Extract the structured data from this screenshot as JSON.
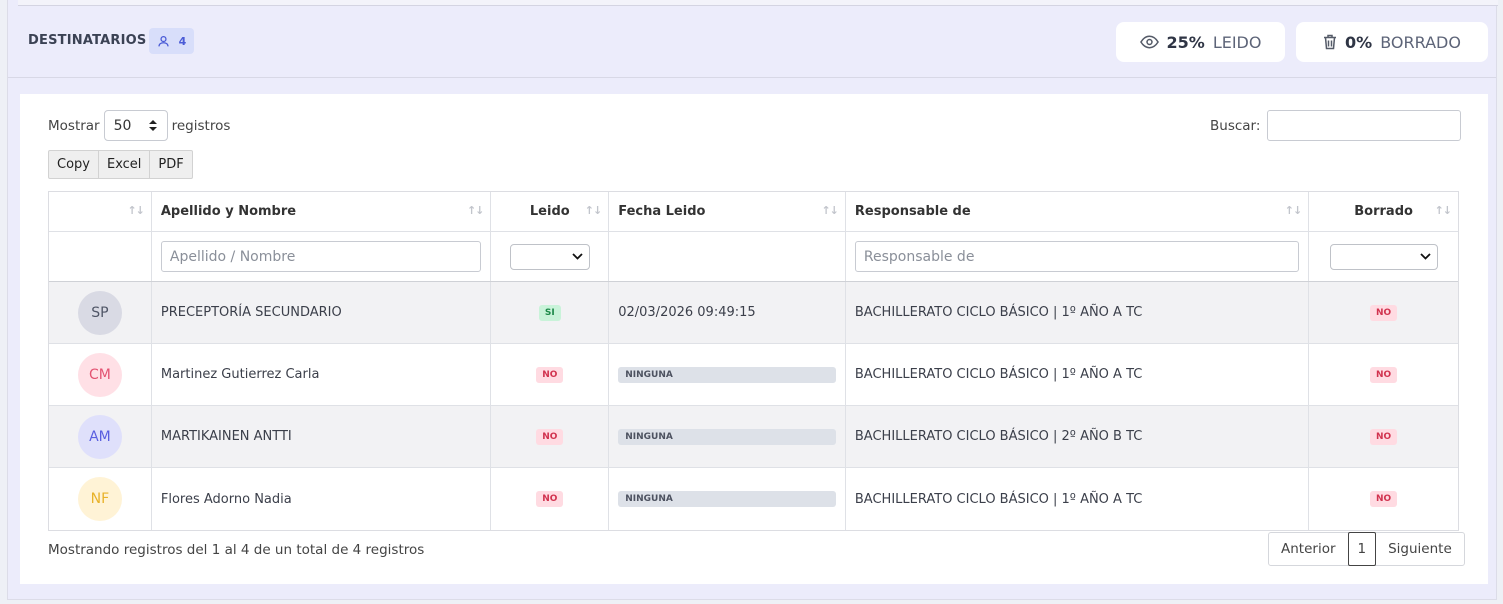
{
  "header": {
    "title": "DESTINATARIOS",
    "recipient_count": "4",
    "read_stat": {
      "percent": "25%",
      "label": "LEIDO",
      "icon": "eye-icon"
    },
    "deleted_stat": {
      "percent": "0%",
      "label": "BORRADO",
      "icon": "trash-icon"
    }
  },
  "controls": {
    "show_label": "Mostrar",
    "page_length": "50",
    "records_label": "registros",
    "search_label": "Buscar:",
    "search_value": "",
    "buttons": [
      "Copy",
      "Excel",
      "PDF"
    ]
  },
  "table": {
    "columns": [
      "",
      "Apellido y Nombre",
      "Leido",
      "Fecha Leido",
      "Responsable de",
      "Borrado"
    ],
    "filters": {
      "name_placeholder": "Apellido / Nombre",
      "responsible_placeholder": "Responsable de"
    },
    "rows": [
      {
        "initials": "SP",
        "avatar_bg": "#d9dae4",
        "avatar_fg": "#4f5566",
        "name": "PRECEPTORÍA SECUNDARIO",
        "read": "SI",
        "read_date": "02/03/2026 09:49:15",
        "read_date_is_badge": false,
        "responsible": "BACHILLERATO CICLO BÁSICO | 1º AÑO A TC",
        "deleted": "NO"
      },
      {
        "initials": "CM",
        "avatar_bg": "#ffe0e6",
        "avatar_fg": "#e35372",
        "name": "Martinez Gutierrez Carla",
        "read": "NO",
        "read_date": "NINGUNA",
        "read_date_is_badge": true,
        "responsible": "BACHILLERATO CICLO BÁSICO | 1º AÑO A TC",
        "deleted": "NO"
      },
      {
        "initials": "AM",
        "avatar_bg": "#dfe0fb",
        "avatar_fg": "#5a5fe0",
        "name": "MARTIKAINEN ANTTI",
        "read": "NO",
        "read_date": "NINGUNA",
        "read_date_is_badge": true,
        "responsible": "BACHILLERATO CICLO BÁSICO | 2º AÑO B TC",
        "deleted": "NO"
      },
      {
        "initials": "NF",
        "avatar_bg": "#fff3d6",
        "avatar_fg": "#e8b22a",
        "name": "Flores Adorno Nadia",
        "read": "NO",
        "read_date": "NINGUNA",
        "read_date_is_badge": true,
        "responsible": "BACHILLERATO CICLO BÁSICO | 1º AÑO A TC",
        "deleted": "NO"
      }
    ]
  },
  "footer": {
    "info": "Mostrando registros del 1 al 4 de un total de 4 registros",
    "prev": "Anterior",
    "current_page": "1",
    "next": "Siguiente"
  }
}
